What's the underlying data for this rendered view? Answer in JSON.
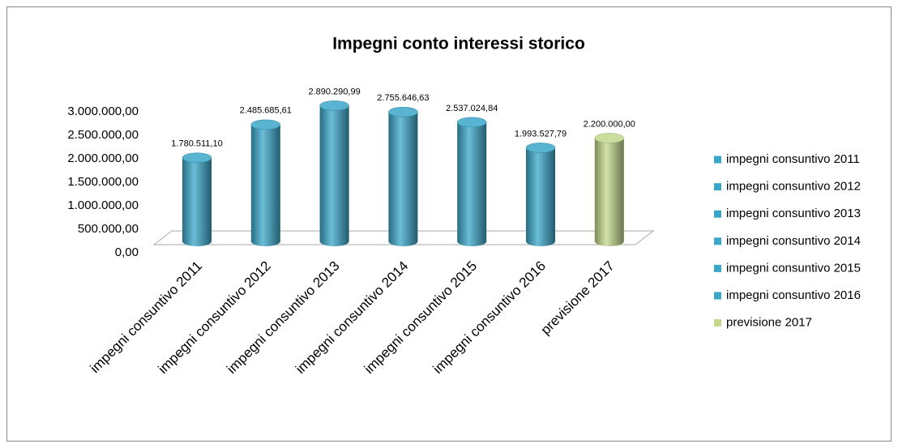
{
  "chart_data": {
    "type": "cylinder_bar",
    "title": "Impegni conto interessi storico",
    "categories": [
      "impegni consuntivo 2011",
      "impegni consuntivo 2012",
      "impegni consuntivo 2013",
      "impegni consuntivo 2014",
      "impegni consuntivo 2015",
      "impegni consuntivo 2016",
      "previsione 2017"
    ],
    "values": [
      1780511.1,
      2485685.61,
      2890290.99,
      2755646.63,
      2537024.84,
      1993527.79,
      2200000.0
    ],
    "value_labels": [
      "1.780.511,10",
      "2.485.685,61",
      "2.890.290,99",
      "2.755.646,63",
      "2.537.024,84",
      "1.993.527,79",
      "2.200.000,00"
    ],
    "colors": [
      "#3aa7c9",
      "#3aa7c9",
      "#3aa7c9",
      "#3aa7c9",
      "#3aa7c9",
      "#3aa7c9",
      "#c3d88c"
    ],
    "ylim": [
      0,
      3000000
    ],
    "yticks": [
      {
        "value": 0,
        "label": "0,00"
      },
      {
        "value": 500000,
        "label": "500.000,00"
      },
      {
        "value": 1000000,
        "label": "1.000.000,00"
      },
      {
        "value": 1500000,
        "label": "1.500.000,00"
      },
      {
        "value": 2000000,
        "label": "2.000.000,00"
      },
      {
        "value": 2500000,
        "label": "2.500.000,00"
      },
      {
        "value": 3000000,
        "label": "3.000.000,00"
      }
    ],
    "legend": "right"
  }
}
